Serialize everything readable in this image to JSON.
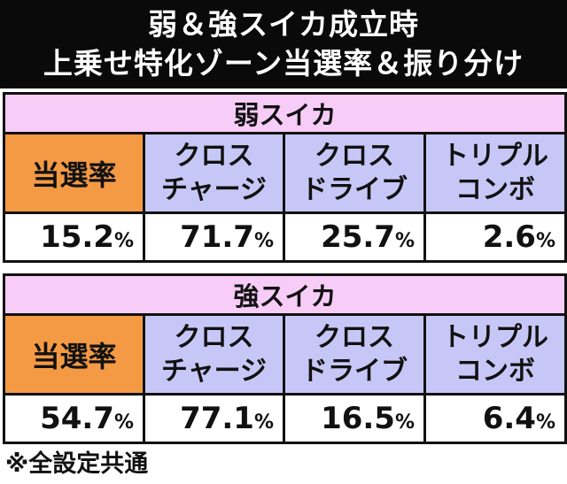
{
  "title": {
    "line1": "弱＆強スイカ成立時",
    "line2": "上乗せ特化ゾーン当選率＆振り分け"
  },
  "tables": [
    {
      "section": "弱スイカ",
      "label": "当選率",
      "columns": [
        {
          "line1": "クロス",
          "line2": "チャージ"
        },
        {
          "line1": "クロス",
          "line2": "ドライブ"
        },
        {
          "line1": "トリプル",
          "line2": "コンボ"
        }
      ],
      "values": [
        {
          "num": "15.2",
          "unit": "%"
        },
        {
          "num": "71.7",
          "unit": "%"
        },
        {
          "num": "25.7",
          "unit": "%"
        },
        {
          "num": "2.6",
          "unit": "%"
        }
      ]
    },
    {
      "section": "強スイカ",
      "label": "当選率",
      "columns": [
        {
          "line1": "クロス",
          "line2": "チャージ"
        },
        {
          "line1": "クロス",
          "line2": "ドライブ"
        },
        {
          "line1": "トリプル",
          "line2": "コンボ"
        }
      ],
      "values": [
        {
          "num": "54.7",
          "unit": "%"
        },
        {
          "num": "77.1",
          "unit": "%"
        },
        {
          "num": "16.5",
          "unit": "%"
        },
        {
          "num": "6.4",
          "unit": "%"
        }
      ]
    }
  ],
  "footnote": "※全設定共通",
  "colors": {
    "title_bg": "#0a0a0a",
    "section_bg": "#f7ccf7",
    "label_bg": "#f59a44",
    "header_bg": "#c7c7f7",
    "first_value_bg": "#fbe6d8"
  }
}
